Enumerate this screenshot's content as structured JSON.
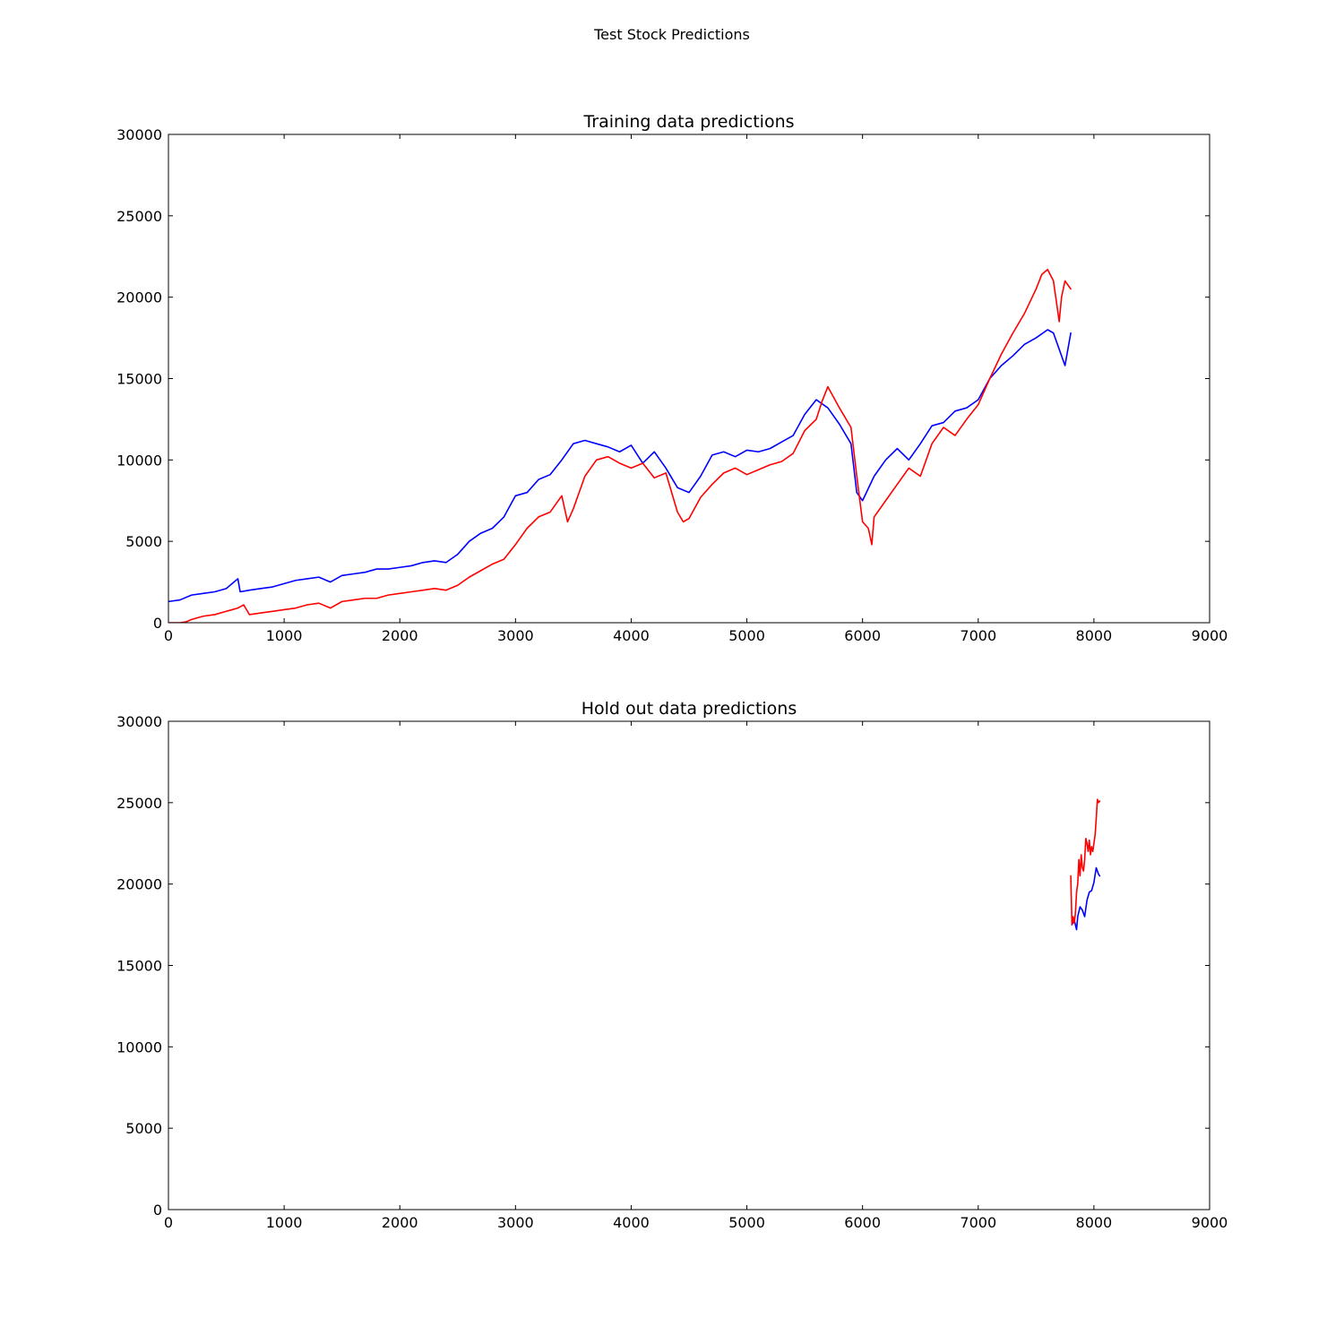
{
  "figure": {
    "suptitle": "Test Stock Predictions"
  },
  "chart_data": [
    {
      "type": "line",
      "title": "Training data predictions",
      "xlabel": "",
      "ylabel": "",
      "xlim": [
        0,
        9000
      ],
      "ylim": [
        0,
        30000
      ],
      "xticks": [
        0,
        1000,
        2000,
        3000,
        4000,
        5000,
        6000,
        7000,
        8000,
        9000
      ],
      "yticks": [
        0,
        5000,
        10000,
        15000,
        20000,
        25000,
        30000
      ],
      "xtick_labels": [
        "0",
        "1000",
        "2000",
        "3000",
        "4000",
        "5000",
        "6000",
        "7000",
        "8000",
        "9000"
      ],
      "ytick_labels": [
        "0",
        "5000",
        "10000",
        "15000",
        "20000",
        "25000",
        "30000"
      ],
      "grid": false,
      "series": [
        {
          "color": "#0000ff",
          "x": [
            0,
            100,
            200,
            300,
            400,
            500,
            550,
            600,
            620,
            700,
            800,
            900,
            1000,
            1100,
            1200,
            1300,
            1400,
            1500,
            1600,
            1700,
            1800,
            1900,
            2000,
            2100,
            2200,
            2300,
            2400,
            2500,
            2600,
            2700,
            2800,
            2900,
            3000,
            3100,
            3200,
            3300,
            3400,
            3500,
            3600,
            3700,
            3800,
            3900,
            4000,
            4100,
            4200,
            4300,
            4400,
            4500,
            4600,
            4700,
            4800,
            4900,
            5000,
            5100,
            5200,
            5300,
            5400,
            5500,
            5600,
            5700,
            5800,
            5900,
            5950,
            6000,
            6100,
            6200,
            6300,
            6400,
            6500,
            6600,
            6700,
            6800,
            6900,
            7000,
            7100,
            7200,
            7300,
            7400,
            7500,
            7600,
            7650,
            7700,
            7750,
            7800
          ],
          "y": [
            1300,
            1400,
            1700,
            1800,
            1900,
            2100,
            2400,
            2700,
            1900,
            2000,
            2100,
            2200,
            2400,
            2600,
            2700,
            2800,
            2500,
            2900,
            3000,
            3100,
            3300,
            3300,
            3400,
            3500,
            3700,
            3800,
            3700,
            4200,
            5000,
            5500,
            5800,
            6500,
            7800,
            8000,
            8800,
            9100,
            10000,
            11000,
            11200,
            11000,
            10800,
            10500,
            10900,
            9800,
            10500,
            9500,
            8300,
            8000,
            9000,
            10300,
            10500,
            10200,
            10600,
            10500,
            10700,
            11100,
            11500,
            12800,
            13700,
            13200,
            12200,
            11000,
            8000,
            7500,
            9000,
            10000,
            10700,
            10000,
            11000,
            12100,
            12300,
            13000,
            13200,
            13700,
            15000,
            15800,
            16400,
            17100,
            17500,
            18000,
            17800,
            16800,
            15800,
            17800
          ]
        },
        {
          "color": "#ff0000",
          "x": [
            0,
            100,
            150,
            200,
            300,
            400,
            500,
            600,
            650,
            700,
            800,
            900,
            1000,
            1100,
            1200,
            1300,
            1400,
            1500,
            1600,
            1700,
            1800,
            1900,
            2000,
            2100,
            2200,
            2300,
            2400,
            2500,
            2600,
            2700,
            2800,
            2900,
            3000,
            3100,
            3200,
            3300,
            3400,
            3450,
            3500,
            3600,
            3700,
            3800,
            3900,
            4000,
            4100,
            4200,
            4300,
            4400,
            4450,
            4500,
            4600,
            4700,
            4800,
            4900,
            5000,
            5100,
            5200,
            5300,
            5400,
            5500,
            5600,
            5650,
            5700,
            5800,
            5900,
            5950,
            6000,
            6050,
            6080,
            6100,
            6200,
            6300,
            6400,
            6500,
            6600,
            6700,
            6800,
            6900,
            7000,
            7100,
            7200,
            7300,
            7400,
            7500,
            7550,
            7600,
            7650,
            7700,
            7720,
            7750,
            7800
          ],
          "y": [
            0,
            0,
            50,
            200,
            400,
            500,
            700,
            900,
            1100,
            500,
            600,
            700,
            800,
            900,
            1100,
            1200,
            900,
            1300,
            1400,
            1500,
            1500,
            1700,
            1800,
            1900,
            2000,
            2100,
            2000,
            2300,
            2800,
            3200,
            3600,
            3900,
            4800,
            5800,
            6500,
            6800,
            7800,
            6200,
            7000,
            9000,
            10000,
            10200,
            9800,
            9500,
            9800,
            8900,
            9200,
            6800,
            6200,
            6400,
            7700,
            8500,
            9200,
            9500,
            9100,
            9400,
            9700,
            9900,
            10400,
            11800,
            12500,
            13600,
            14500,
            13200,
            12000,
            9000,
            6200,
            5800,
            4800,
            6500,
            7500,
            8500,
            9500,
            9000,
            11000,
            12000,
            11500,
            12500,
            13400,
            15000,
            16500,
            17800,
            19000,
            20500,
            21400,
            21700,
            21000,
            18500,
            20000,
            21000,
            20500
          ]
        }
      ]
    },
    {
      "type": "line",
      "title": "Hold out data predictions",
      "xlabel": "",
      "ylabel": "",
      "xlim": [
        0,
        9000
      ],
      "ylim": [
        0,
        30000
      ],
      "xticks": [
        0,
        1000,
        2000,
        3000,
        4000,
        5000,
        6000,
        7000,
        8000,
        9000
      ],
      "yticks": [
        0,
        5000,
        10000,
        15000,
        20000,
        25000,
        30000
      ],
      "xtick_labels": [
        "0",
        "1000",
        "2000",
        "3000",
        "4000",
        "5000",
        "6000",
        "7000",
        "8000",
        "9000"
      ],
      "ytick_labels": [
        "0",
        "5000",
        "10000",
        "15000",
        "20000",
        "25000",
        "30000"
      ],
      "grid": false,
      "series": [
        {
          "color": "#0000ff",
          "x": [
            7810,
            7830,
            7850,
            7860,
            7880,
            7900,
            7920,
            7940,
            7960,
            7980,
            8000,
            8020,
            8040,
            8050
          ],
          "y": [
            17500,
            17800,
            17200,
            18000,
            18600,
            18400,
            18000,
            19000,
            19500,
            19600,
            20100,
            21000,
            20600,
            20500
          ]
        },
        {
          "color": "#ff0000",
          "x": [
            7800,
            7805,
            7810,
            7820,
            7830,
            7840,
            7850,
            7860,
            7870,
            7880,
            7890,
            7900,
            7910,
            7920,
            7930,
            7940,
            7950,
            7960,
            7970,
            7980,
            7990,
            8000,
            8010,
            8020,
            8030,
            8040,
            8050
          ],
          "y": [
            20500,
            19000,
            17500,
            18000,
            17600,
            18200,
            19500,
            20000,
            21500,
            20500,
            21800,
            21000,
            20800,
            21500,
            22800,
            22500,
            22000,
            22700,
            21800,
            22300,
            22000,
            22500,
            23000,
            24000,
            25200,
            25000,
            25100
          ]
        }
      ]
    }
  ]
}
